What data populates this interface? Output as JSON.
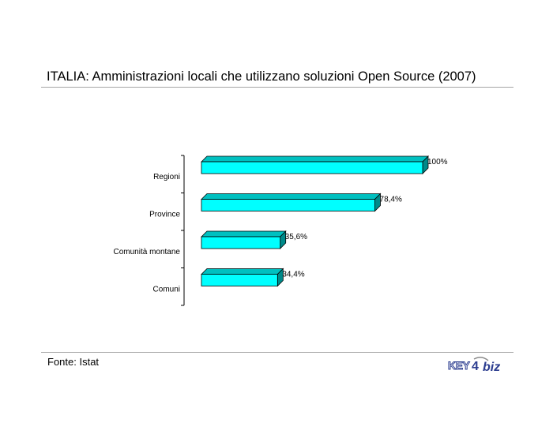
{
  "title": "ITALIA: Amministrazioni locali che utilizzano soluzioni Open Source (2007)",
  "source": "Fonte: Istat",
  "logo": {
    "text_left": "KEY",
    "text_mid": "4",
    "text_right": "biz"
  },
  "colors": {
    "bar_front": "#00ffff",
    "bar_top": "#00c0c0",
    "bar_side": "#008a8a",
    "outline": "#000000",
    "rule": "#a6a6a6",
    "logo_blue": "#2b3c8f",
    "logo_gray": "#8a8a8a"
  },
  "chart_data": {
    "type": "bar",
    "orientation": "horizontal",
    "style": "3d",
    "title": "ITALIA: Amministrazioni locali che utilizzano soluzioni Open Source (2007)",
    "categories": [
      "Regioni",
      "Province",
      "Comunità montane",
      "Comuni"
    ],
    "values": [
      100,
      78.4,
      35.6,
      34.4
    ],
    "data_labels": [
      "100%",
      "78,4%",
      "35,6%",
      "34,4%"
    ],
    "unit": "%",
    "xlim": [
      0,
      100
    ],
    "grid": false,
    "legend": "none"
  }
}
